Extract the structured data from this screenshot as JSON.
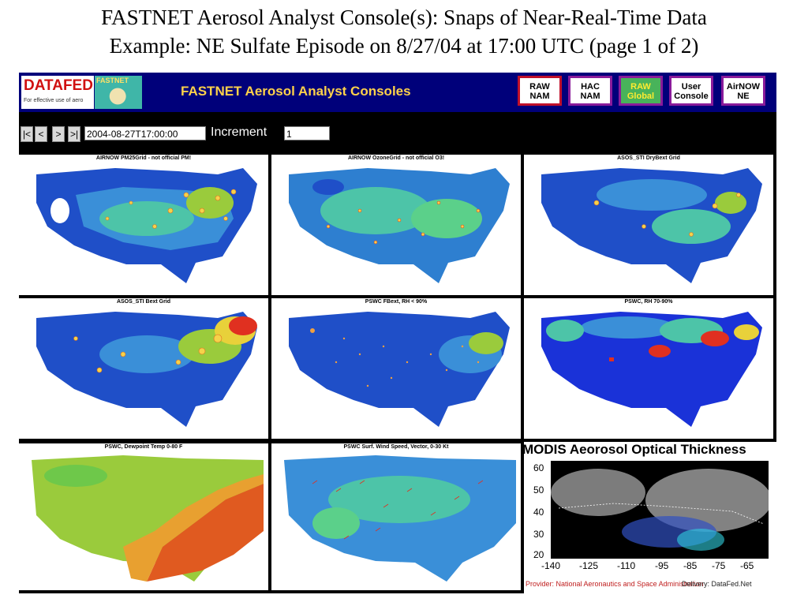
{
  "slide": {
    "title_line1": "FASTNET Aerosol Analyst Console(s): Snaps of Near-Real-Time Data",
    "title_line2": "Example: NE Sulfate Episode on 8/27/04 at 17:00 UTC (page 1 of 2)"
  },
  "header": {
    "logo_text": "DATAFED",
    "logo_subtext": "For effective use of aero",
    "fastnet_logo_text": "FASTNET",
    "title": "FASTNET Aerosol Analyst Consoles",
    "buttons": [
      {
        "line1": "RAW",
        "line2": "NAM"
      },
      {
        "line1": "HAC",
        "line2": "NAM"
      },
      {
        "line1": "RAW",
        "line2": "Global"
      },
      {
        "line1": "User",
        "line2": "Console"
      },
      {
        "line1": "AirNOW",
        "line2": "NE"
      }
    ]
  },
  "nav": {
    "first": "|<",
    "prev": "<",
    "next": ">",
    "last": ">|",
    "datetime": "2004-08-27T17:00:00",
    "increment_label": "Increment",
    "increment_value": "1"
  },
  "panels": [
    {
      "title": "AIRNOW PM25Grid - not official PM!"
    },
    {
      "title": "AIRNOW OzoneGrid - not official O3!"
    },
    {
      "title": "ASOS_STI DryBext Grid"
    },
    {
      "title": "ASOS_STI Bext Grid"
    },
    {
      "title": "PSWC FBext, RH < 90%"
    },
    {
      "title": "PSWC, RH 70-90%"
    },
    {
      "title": "PSWC, Dewpoint Temp 0-80 F"
    },
    {
      "title": "PSWC Surf. Wind Speed, Vector, 0-30 Kt"
    }
  ],
  "modis": {
    "title": "MODIS Aeorosol Optical Thickness",
    "y_ticks": [
      "60",
      "50",
      "40",
      "30",
      "20"
    ],
    "x_ticks": [
      "-140",
      "-125",
      "-110",
      "-95",
      "-85",
      "-75",
      "-65"
    ],
    "provider": "Provider: National Aeronautics and Space Administration",
    "delivered": "Delivery: DataFed.Net"
  },
  "colors": {
    "header_bg": "#00007a",
    "console_title": "#ffd24a",
    "ocean": "#ffffff",
    "map_blue": "#1f4fc8",
    "map_red": "#e03020"
  }
}
